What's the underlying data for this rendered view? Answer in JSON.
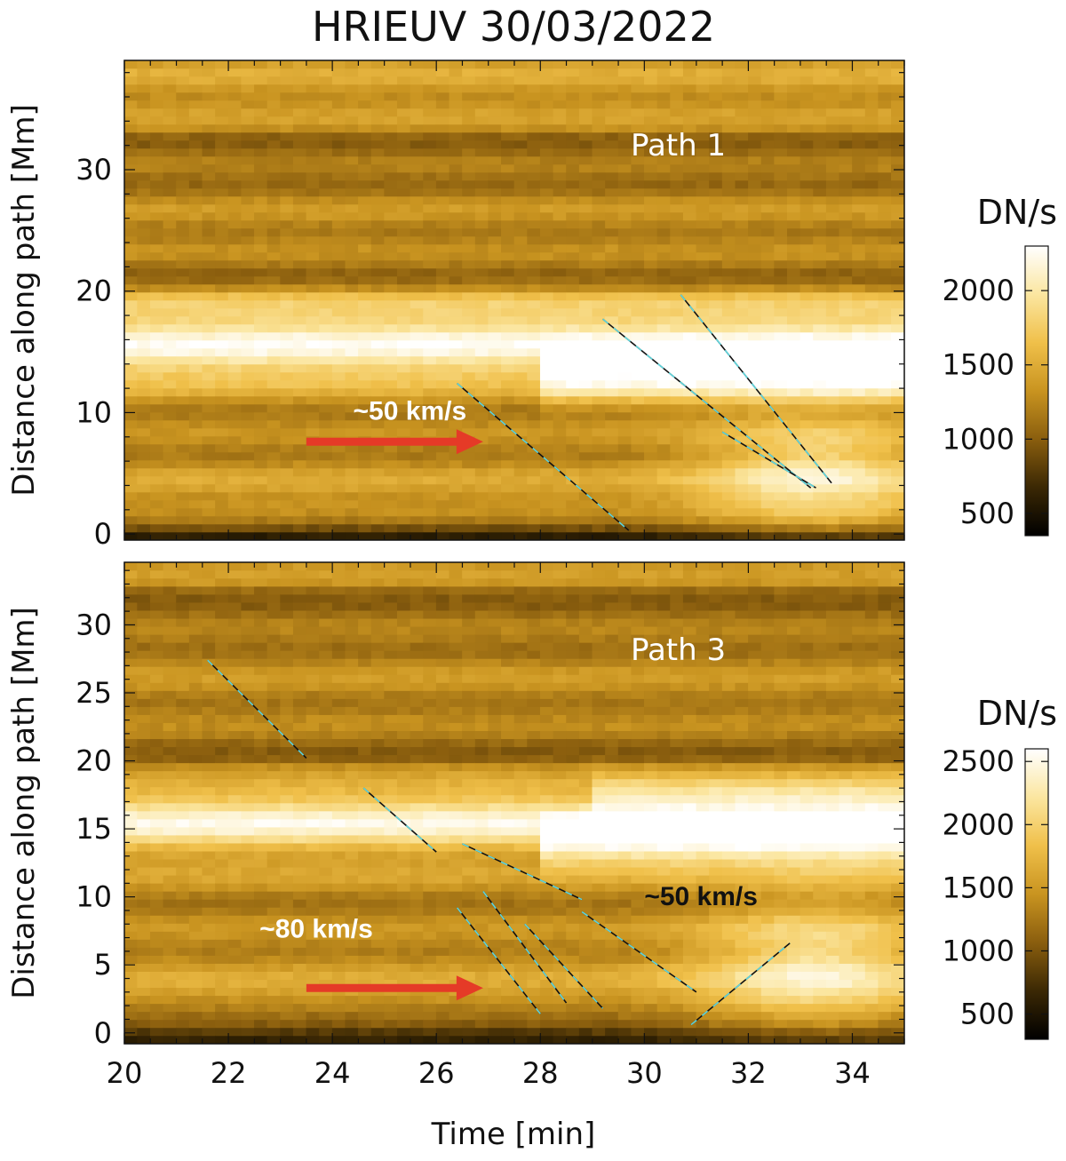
{
  "chart_data": {
    "type": "heatmap",
    "title": "HRIEUV 30/03/2022",
    "xlabel": "Time [min]",
    "xlim": [
      20,
      35
    ],
    "xticks": [
      20,
      22,
      24,
      26,
      28,
      30,
      32,
      34
    ],
    "colormap": [
      "#000000",
      "#3b2804",
      "#8a5e0e",
      "#c99420",
      "#f0c04a",
      "#fbe6a0",
      "#ffffff"
    ],
    "panels": [
      {
        "name": "Path 1",
        "path_label": "Path   1",
        "ylabel": "Distance along path [Mm]",
        "ylim": [
          -0.5,
          39
        ],
        "yticks": [
          0,
          10,
          20,
          30
        ],
        "colorbar": {
          "label": "DN/s",
          "range": [
            350,
            2300
          ],
          "ticks": [
            500,
            1000,
            1500,
            2000
          ]
        },
        "speed_labels": [
          {
            "text": "~50 km/s",
            "x": 24.4,
            "y": 9.4,
            "color": "#ffffff"
          }
        ],
        "arrows": [
          {
            "from": [
              23.5,
              7.6
            ],
            "to": [
              26.9,
              7.6
            ],
            "color": "#e53a27"
          }
        ],
        "bright_bands": [
          {
            "y": 15.3,
            "width": 2.6,
            "strength": 0.85,
            "t_start": 20,
            "t_end": 35
          },
          {
            "y": 13.0,
            "width": 2.2,
            "strength": 0.7,
            "t_start": 28,
            "t_end": 35
          },
          {
            "y": 18.5,
            "width": 1.8,
            "strength": 0.45,
            "t_start": 20,
            "t_end": 35
          }
        ],
        "fit_lines": [
          {
            "x": [
              26.4,
              29.7
            ],
            "y": [
              12.4,
              0.3
            ]
          },
          {
            "x": [
              29.2,
              33.2
            ],
            "y": [
              17.7,
              3.8
            ]
          },
          {
            "x": [
              30.7,
              33.6
            ],
            "y": [
              19.7,
              4.2
            ]
          },
          {
            "x": [
              31.5,
              33.3
            ],
            "y": [
              8.4,
              3.8
            ]
          }
        ]
      },
      {
        "name": "Path 3",
        "path_label": "Path   3",
        "ylabel": "Distance along path [Mm]",
        "ylim": [
          -0.8,
          34.6
        ],
        "yticks": [
          0,
          5,
          10,
          15,
          20,
          25,
          30
        ],
        "colorbar": {
          "label": "DN/s",
          "range": [
            300,
            2600
          ],
          "ticks": [
            500,
            1000,
            1500,
            2000,
            2500
          ]
        },
        "speed_labels": [
          {
            "text": "~80 km/s",
            "x": 22.6,
            "y": 7.0,
            "color": "#ffffff"
          },
          {
            "text": "~50 km/s",
            "x": 30.0,
            "y": 9.4,
            "color": "#111111"
          }
        ],
        "arrows": [
          {
            "from": [
              23.5,
              3.3
            ],
            "to": [
              26.9,
              3.3
            ],
            "color": "#e53a27"
          }
        ],
        "bright_bands": [
          {
            "y": 15.8,
            "width": 2.2,
            "strength": 0.85,
            "t_start": 20,
            "t_end": 35
          },
          {
            "y": 13.8,
            "width": 1.8,
            "strength": 0.7,
            "t_start": 28,
            "t_end": 35
          },
          {
            "y": 17.5,
            "width": 1.4,
            "strength": 0.45,
            "t_start": 29,
            "t_end": 35
          }
        ],
        "fit_lines": [
          {
            "x": [
              21.6,
              23.5
            ],
            "y": [
              27.4,
              20.2
            ]
          },
          {
            "x": [
              24.6,
              26.0
            ],
            "y": [
              18.0,
              13.3
            ]
          },
          {
            "x": [
              26.5,
              28.8
            ],
            "y": [
              13.9,
              9.8
            ]
          },
          {
            "x": [
              26.4,
              28.0
            ],
            "y": [
              9.2,
              1.4
            ]
          },
          {
            "x": [
              26.9,
              28.5
            ],
            "y": [
              10.4,
              2.2
            ]
          },
          {
            "x": [
              27.7,
              29.2
            ],
            "y": [
              8.0,
              1.8
            ]
          },
          {
            "x": [
              28.8,
              31.0
            ],
            "y": [
              8.9,
              3.0
            ]
          },
          {
            "x": [
              30.9,
              32.8
            ],
            "y": [
              0.6,
              6.6
            ]
          }
        ]
      }
    ]
  }
}
